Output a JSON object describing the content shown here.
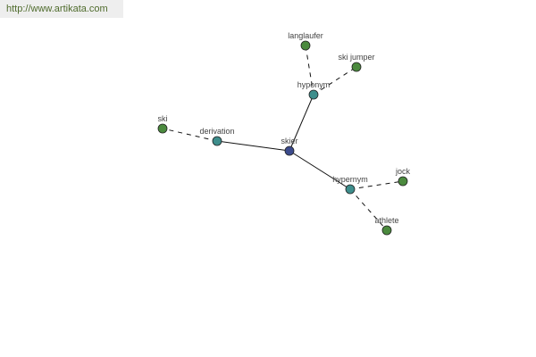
{
  "header": {
    "link": "http://www.artikata.com"
  },
  "colors": {
    "center": "#3b4a8c",
    "relation": "#3e8e8c",
    "leaf": "#4b8a3e"
  },
  "graph": {
    "nodes": [
      {
        "id": "skier",
        "label": "skier",
        "kind": "center"
      },
      {
        "id": "derivation",
        "label": "derivation",
        "kind": "relation"
      },
      {
        "id": "hyponym",
        "label": "hyponym",
        "kind": "relation"
      },
      {
        "id": "hypernym",
        "label": "hypernym",
        "kind": "relation"
      },
      {
        "id": "ski",
        "label": "ski",
        "kind": "leaf"
      },
      {
        "id": "langlaufer",
        "label": "langlaufer",
        "kind": "leaf"
      },
      {
        "id": "ski_jumper",
        "label": "ski jumper",
        "kind": "leaf"
      },
      {
        "id": "jock",
        "label": "jock",
        "kind": "leaf"
      },
      {
        "id": "athlete",
        "label": "athlete",
        "kind": "leaf"
      }
    ],
    "edges": [
      {
        "from": "skier",
        "to": "derivation",
        "style": "solid"
      },
      {
        "from": "skier",
        "to": "hyponym",
        "style": "solid"
      },
      {
        "from": "skier",
        "to": "hypernym",
        "style": "solid"
      },
      {
        "from": "derivation",
        "to": "ski",
        "style": "dashed"
      },
      {
        "from": "hyponym",
        "to": "langlaufer",
        "style": "dashed"
      },
      {
        "from": "hyponym",
        "to": "ski_jumper",
        "style": "dashed"
      },
      {
        "from": "hypernym",
        "to": "jock",
        "style": "dashed"
      },
      {
        "from": "hypernym",
        "to": "athlete",
        "style": "dashed"
      }
    ]
  }
}
